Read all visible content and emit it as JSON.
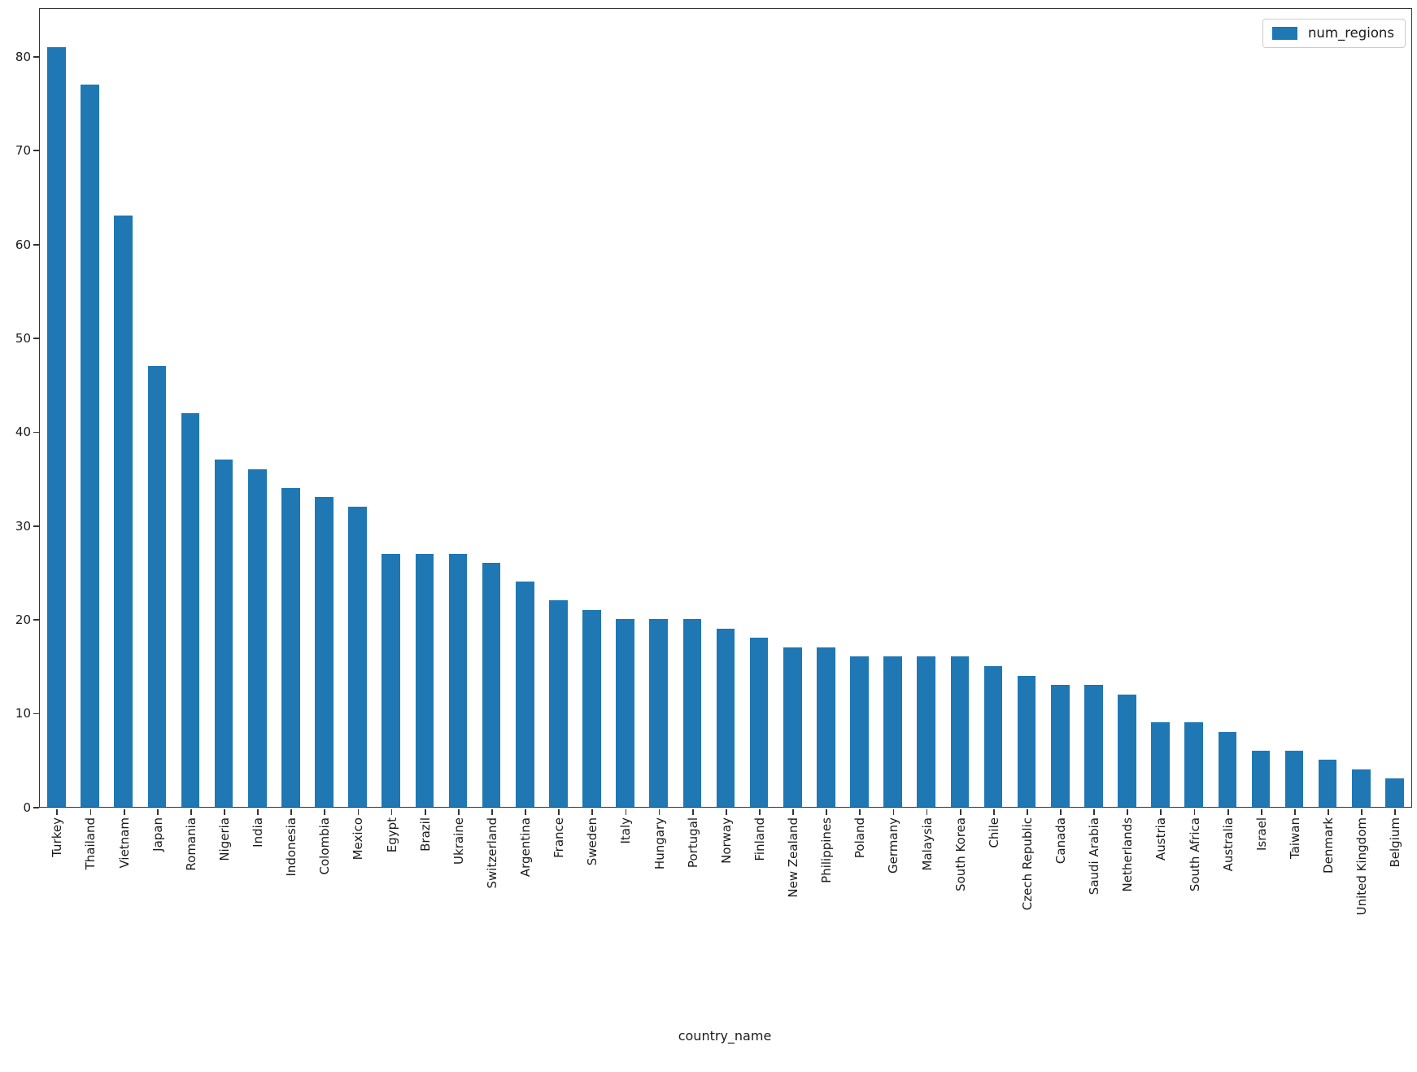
{
  "chart_data": {
    "type": "bar",
    "title": "",
    "xlabel": "country_name",
    "ylabel": "",
    "categories": [
      "Turkey",
      "Thailand",
      "Vietnam",
      "Japan",
      "Romania",
      "Nigeria",
      "India",
      "Indonesia",
      "Colombia",
      "Mexico",
      "Egypt",
      "Brazil",
      "Ukraine",
      "Switzerland",
      "Argentina",
      "France",
      "Sweden",
      "Italy",
      "Hungary",
      "Portugal",
      "Norway",
      "Finland",
      "New Zealand",
      "Philippines",
      "Poland",
      "Germany",
      "Malaysia",
      "South Korea",
      "Chile",
      "Czech Republic",
      "Canada",
      "Saudi Arabia",
      "Netherlands",
      "Austria",
      "South Africa",
      "Australia",
      "Israel",
      "Taiwan",
      "Denmark",
      "United Kingdom",
      "Belgium"
    ],
    "series": [
      {
        "name": "num_regions",
        "color": "#1f77b4",
        "values": [
          81,
          77,
          63,
          47,
          42,
          37,
          36,
          34,
          33,
          32,
          27,
          27,
          27,
          26,
          24,
          22,
          21,
          20,
          20,
          20,
          19,
          18,
          17,
          17,
          16,
          16,
          16,
          16,
          15,
          14,
          13,
          13,
          12,
          9,
          9,
          8,
          6,
          6,
          5,
          4,
          3
        ]
      }
    ],
    "ylim": [
      0,
      85.05
    ],
    "yticks": [
      0,
      10,
      20,
      30,
      40,
      50,
      60,
      70,
      80
    ],
    "grid": false,
    "legend_position": "upper right"
  },
  "colors": {
    "bar": "#1f77b4",
    "spine": "#333333",
    "text": "#1a1a1a",
    "legend_border": "#cccccc",
    "background": "#ffffff"
  }
}
